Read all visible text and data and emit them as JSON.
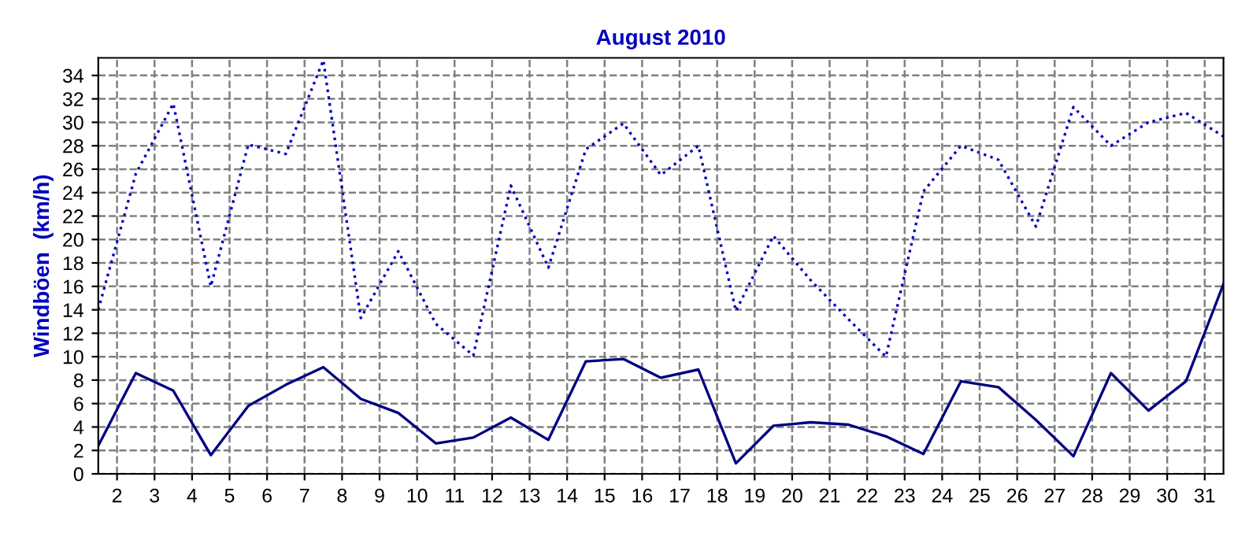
{
  "chart_data": {
    "type": "line",
    "title": "August 2010",
    "ylabel": "Windböen  (km/h)",
    "x": [
      1.5,
      2.5,
      3.5,
      4.5,
      5.5,
      6.5,
      7.5,
      8.5,
      9.5,
      10.5,
      11.5,
      12.5,
      13.5,
      14.5,
      15.5,
      16.5,
      17.5,
      18.5,
      19.5,
      20.5,
      21.5,
      22.5,
      23.5,
      24.5,
      25.5,
      26.5,
      27.5,
      28.5,
      29.5,
      30.5,
      31.5
    ],
    "series": [
      {
        "color": "#0000c0",
        "line_style": "dotted",
        "values": [
          14,
          25.6,
          31.6,
          16,
          28.1,
          27.3,
          35.3,
          13.3,
          19,
          12.8,
          10.1,
          24.6,
          17.6,
          27.7,
          29.9,
          25.5,
          28,
          13.9,
          20.3,
          16.5,
          13.2,
          10,
          24.1,
          28,
          26.8,
          21.1,
          31.3,
          28,
          30,
          30.8,
          28.8
        ]
      },
      {
        "color": "#000080",
        "line_style": "solid",
        "values": [
          2.4,
          8.6,
          7.1,
          1.6,
          5.8,
          7.6,
          9.1,
          6.4,
          5.2,
          2.6,
          3.1,
          4.8,
          2.9,
          9.6,
          9.8,
          8.2,
          8.9,
          0.9,
          4.1,
          4.4,
          4.2,
          3.2,
          1.7,
          7.9,
          7.4,
          4.6,
          1.5,
          8.6,
          5.4,
          7.9,
          16.2
        ]
      }
    ],
    "xlim": [
      1.5,
      31.5
    ],
    "xticks": [
      2,
      3,
      4,
      5,
      6,
      7,
      8,
      9,
      10,
      11,
      12,
      13,
      14,
      15,
      16,
      17,
      18,
      19,
      20,
      21,
      22,
      23,
      24,
      25,
      26,
      27,
      28,
      29,
      30,
      31
    ],
    "ylim": [
      0,
      35.5
    ],
    "yticks": [
      0,
      2,
      4,
      6,
      8,
      10,
      12,
      14,
      16,
      18,
      20,
      22,
      24,
      26,
      28,
      30,
      32,
      34
    ],
    "grid": true,
    "marker": "none"
  }
}
